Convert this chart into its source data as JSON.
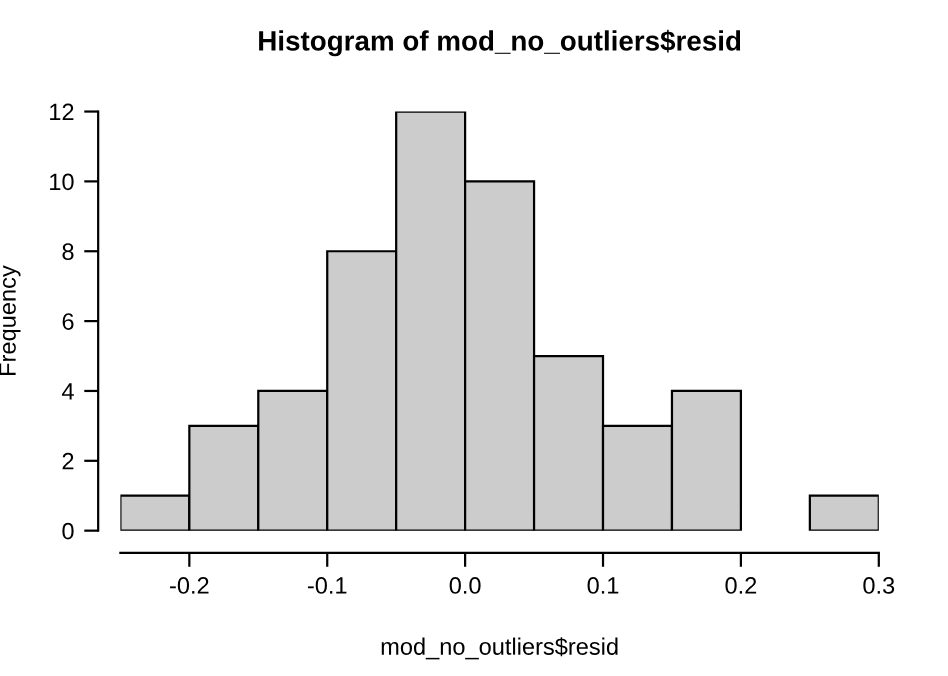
{
  "chart_data": {
    "type": "histogram",
    "title": "Histogram of mod_no_outliers$resid",
    "xlabel": "mod_no_outliers$resid",
    "ylabel": "Frequency",
    "bins": [
      -0.25,
      -0.2,
      -0.15,
      -0.1,
      -0.05,
      0.0,
      0.05,
      0.1,
      0.15,
      0.2,
      0.25,
      0.3
    ],
    "values": [
      1,
      3,
      4,
      8,
      12,
      10,
      5,
      3,
      4,
      0,
      1
    ],
    "color": "#cccccc",
    "xlim": [
      -0.25,
      0.3
    ],
    "ylim": [
      0,
      12
    ],
    "xticks": [
      -0.2,
      -0.1,
      {
        "value": 0.0,
        "label": "0.0"
      },
      0.1,
      0.2,
      0.3
    ],
    "yticks": [
      0,
      2,
      4,
      6,
      8,
      10,
      12
    ],
    "grid": false
  }
}
